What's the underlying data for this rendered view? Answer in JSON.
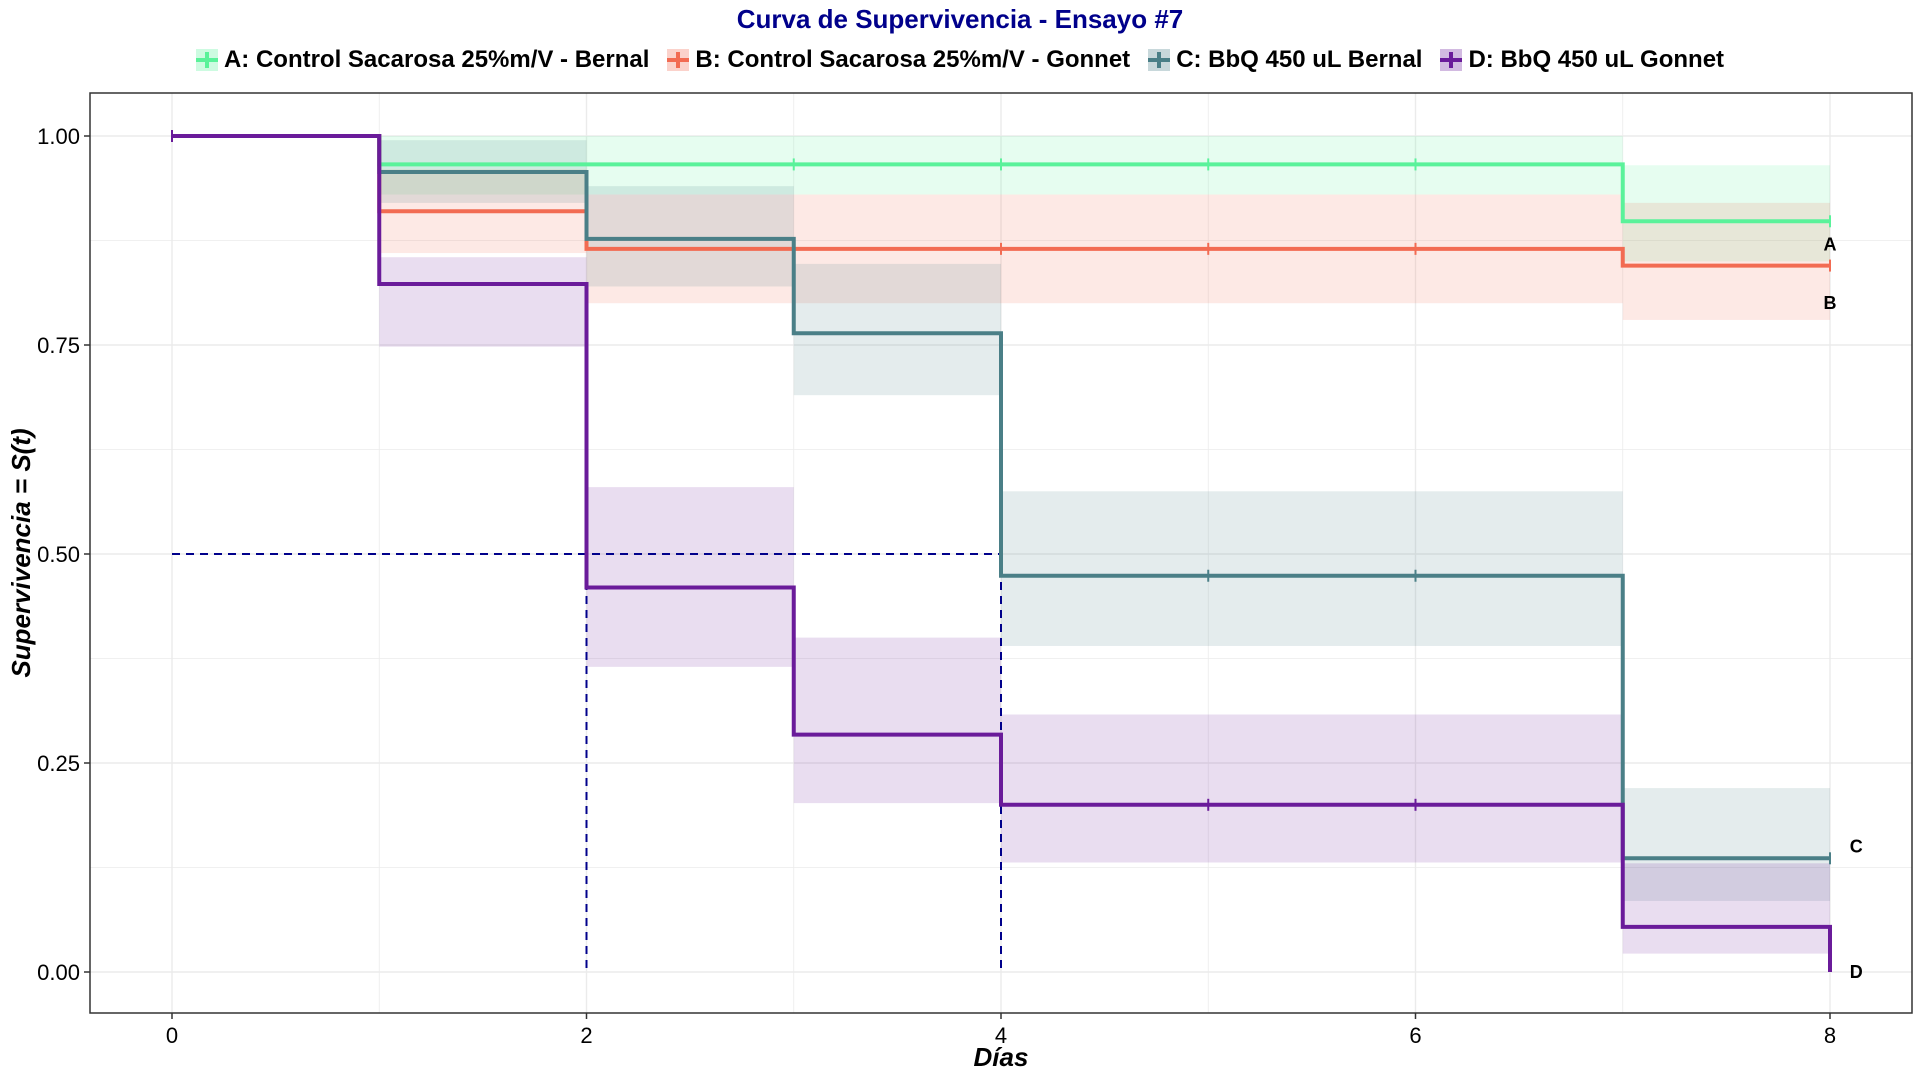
{
  "chart_data": {
    "type": "line",
    "title": "Curva de Supervivencia - Ensayo #7",
    "xlabel": "Días",
    "ylabel": "Supervivencia = S(t)",
    "xlim": [
      0,
      8
    ],
    "ylim": [
      0,
      1
    ],
    "x_ticks": [
      "0",
      "2",
      "4",
      "6",
      "8"
    ],
    "x_tick_values": [
      0,
      2,
      4,
      6,
      8
    ],
    "y_ticks": [
      "0.00",
      "0.25",
      "0.50",
      "0.75",
      "1.00"
    ],
    "y_tick_values": [
      0,
      0.25,
      0.5,
      0.75,
      1
    ],
    "grid": true,
    "legend_position": "top",
    "median_line": {
      "y": 0.5,
      "x_values": [
        2,
        4
      ],
      "color": "#00008B"
    },
    "series": [
      {
        "name": "A: Control Sacarosa 25%m/V - Bernal",
        "label": "A",
        "color": "#5AF29A",
        "time": [
          0,
          1,
          7,
          8
        ],
        "survival": [
          1.0,
          0.966,
          0.898,
          0.898
        ],
        "lower": [
          1.0,
          0.93,
          0.85,
          0.85
        ],
        "upper": [
          1.0,
          1.0,
          0.965,
          0.965
        ],
        "censor_times": [
          0,
          3,
          4,
          5,
          6,
          8
        ]
      },
      {
        "name": "B: Control Sacarosa 25%m/V - Gonnet",
        "label": "B",
        "color": "#F26B52",
        "time": [
          0,
          1,
          2,
          7,
          8
        ],
        "survival": [
          1.0,
          0.91,
          0.865,
          0.845,
          0.845
        ],
        "lower": [
          1.0,
          0.86,
          0.8,
          0.78,
          0.78
        ],
        "upper": [
          1.0,
          0.96,
          0.93,
          0.92,
          0.92
        ],
        "censor_times": [
          0,
          4,
          5,
          6,
          8
        ]
      },
      {
        "name": "C: BbQ 450 uL Bernal",
        "label": "C",
        "color": "#4A7F87",
        "time": [
          0,
          1,
          2,
          3,
          4,
          7,
          8
        ],
        "survival": [
          1.0,
          0.957,
          0.877,
          0.764,
          0.474,
          0.136,
          0.136
        ],
        "lower": [
          1.0,
          0.92,
          0.82,
          0.69,
          0.39,
          0.085,
          0.085
        ],
        "upper": [
          1.0,
          0.995,
          0.94,
          0.847,
          0.575,
          0.22,
          0.22
        ],
        "censor_times": [
          5,
          6,
          8
        ]
      },
      {
        "name": "D: BbQ 450 uL Gonnet",
        "label": "D",
        "color": "#6A1B9A",
        "time": [
          0,
          1,
          2,
          3,
          4,
          7,
          8
        ],
        "survival": [
          1.0,
          0.823,
          0.46,
          0.284,
          0.2,
          0.054,
          0.0
        ],
        "lower": [
          1.0,
          0.748,
          0.365,
          0.202,
          0.131,
          0.022,
          0.0
        ],
        "upper": [
          1.0,
          0.855,
          0.58,
          0.4,
          0.308,
          0.13,
          0.0
        ],
        "censor_times": [
          0,
          5,
          6
        ]
      }
    ]
  }
}
